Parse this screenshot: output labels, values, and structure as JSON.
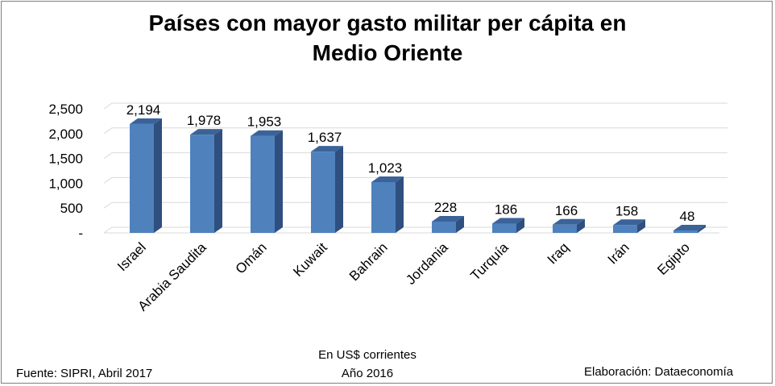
{
  "title": {
    "line1": "Países con mayor gasto militar per cápita en",
    "line2": "Medio Oriente"
  },
  "footer": {
    "source": "Fuente: SIPRI, Abril 2017",
    "unit_line1": "En US$ corrientes",
    "unit_line2": "Año 2016",
    "credit": "Elaboración: Dataeconomía"
  },
  "colors": {
    "bar_front": "#4f81bd",
    "bar_side": "#2f4f7f",
    "bar_top": "#3b6399",
    "grid": "#d9d9d9"
  },
  "chart_data": {
    "type": "bar",
    "categories": [
      "Israel",
      "Arabia Saudita",
      "Omán",
      "Kuwait",
      "Bahrain",
      "Jordania",
      "Turquía",
      "Iraq",
      "Irán",
      "Egipto"
    ],
    "values": [
      2194,
      1978,
      1953,
      1637,
      1023,
      228,
      186,
      166,
      158,
      48
    ],
    "value_labels": [
      "2,194",
      "1,978",
      "1,953",
      "1,637",
      "1,023",
      "228",
      "186",
      "166",
      "158",
      "48"
    ],
    "y_ticks": [
      "-",
      "500",
      "1,000",
      "1,500",
      "2,000",
      "2,500"
    ],
    "ylim": [
      0,
      2500
    ],
    "grid": true,
    "bar_style": "3d"
  }
}
